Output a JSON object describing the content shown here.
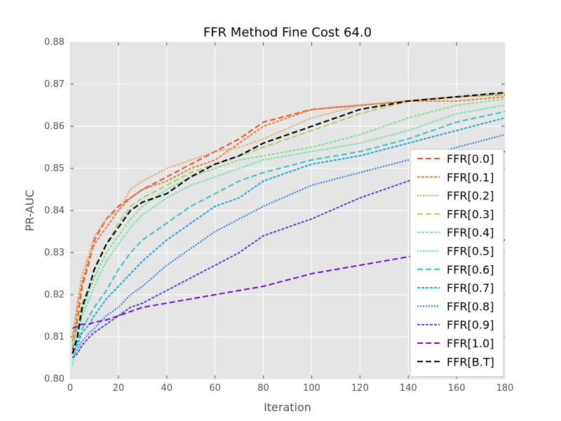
{
  "chart_data": {
    "type": "line",
    "title": "FFR Method Fine Cost 64.0",
    "xlabel": "Iteration",
    "ylabel": "PR-AUC",
    "xlim": [
      0,
      180
    ],
    "ylim": [
      0.8,
      0.88
    ],
    "xticks": [
      0,
      20,
      40,
      60,
      80,
      100,
      120,
      140,
      160,
      180
    ],
    "yticks": [
      0.8,
      0.81,
      0.82,
      0.83,
      0.84,
      0.85,
      0.86,
      0.87,
      0.88
    ],
    "xtick_labels": [
      "0",
      "20",
      "40",
      "60",
      "80",
      "100",
      "120",
      "140",
      "160",
      "180"
    ],
    "ytick_labels": [
      "0.80",
      "0.81",
      "0.82",
      "0.83",
      "0.84",
      "0.85",
      "0.86",
      "0.87",
      "0.88"
    ],
    "grid": true,
    "background": "#e5e5e5",
    "legend_position": "lower-right",
    "x": [
      1,
      3,
      5,
      8,
      10,
      15,
      20,
      25,
      30,
      40,
      50,
      60,
      70,
      80,
      100,
      120,
      140,
      160,
      180
    ],
    "series": [
      {
        "name": "FFR[0.0]",
        "color": "#e8502a",
        "dash": "8,4",
        "values": [
          0.807,
          0.814,
          0.822,
          0.828,
          0.833,
          0.838,
          0.841,
          0.843,
          0.845,
          0.848,
          0.851,
          0.854,
          0.857,
          0.861,
          0.864,
          0.865,
          0.866,
          0.867,
          0.8675
        ]
      },
      {
        "name": "FFR[0.1]",
        "color": "#f07a3c",
        "dash": "4,2",
        "values": [
          0.809,
          0.817,
          0.823,
          0.829,
          0.832,
          0.836,
          0.84,
          0.843,
          0.845,
          0.847,
          0.85,
          0.852,
          0.856,
          0.86,
          0.864,
          0.865,
          0.866,
          0.866,
          0.867
        ]
      },
      {
        "name": "FFR[0.2]",
        "color": "#e0a050",
        "dash": "2,2",
        "values": [
          0.81,
          0.818,
          0.825,
          0.83,
          0.834,
          0.838,
          0.84,
          0.845,
          0.847,
          0.85,
          0.852,
          0.854,
          0.855,
          0.857,
          0.862,
          0.865,
          0.866,
          0.867,
          0.868
        ]
      },
      {
        "name": "FFR[0.3]",
        "color": "#a8d060",
        "dash": "8,4",
        "values": [
          0.808,
          0.813,
          0.818,
          0.822,
          0.826,
          0.832,
          0.837,
          0.841,
          0.843,
          0.846,
          0.849,
          0.851,
          0.853,
          0.855,
          0.859,
          0.863,
          0.866,
          0.867,
          0.8675
        ]
      },
      {
        "name": "FFR[0.4]",
        "color": "#80e090",
        "dash": "4,2",
        "values": [
          0.808,
          0.812,
          0.816,
          0.821,
          0.824,
          0.83,
          0.834,
          0.838,
          0.841,
          0.845,
          0.848,
          0.85,
          0.852,
          0.853,
          0.855,
          0.858,
          0.862,
          0.865,
          0.8665
        ]
      },
      {
        "name": "FFR[0.5]",
        "color": "#50e0a0",
        "dash": "2,2",
        "values": [
          0.803,
          0.81,
          0.815,
          0.819,
          0.822,
          0.828,
          0.832,
          0.836,
          0.839,
          0.843,
          0.846,
          0.848,
          0.85,
          0.852,
          0.854,
          0.856,
          0.859,
          0.863,
          0.865
        ]
      },
      {
        "name": "FFR[0.6]",
        "color": "#30c8c0",
        "dash": "8,4",
        "values": [
          0.806,
          0.809,
          0.812,
          0.815,
          0.817,
          0.821,
          0.826,
          0.83,
          0.833,
          0.837,
          0.841,
          0.844,
          0.847,
          0.849,
          0.852,
          0.854,
          0.857,
          0.861,
          0.8635
        ]
      },
      {
        "name": "FFR[0.7]",
        "color": "#18a8e0",
        "dash": "4,2",
        "values": [
          0.806,
          0.808,
          0.811,
          0.813,
          0.815,
          0.819,
          0.822,
          0.825,
          0.828,
          0.833,
          0.837,
          0.841,
          0.843,
          0.847,
          0.851,
          0.853,
          0.856,
          0.859,
          0.862
        ]
      },
      {
        "name": "FFR[0.8]",
        "color": "#2878e0",
        "dash": "2,2",
        "values": [
          0.805,
          0.807,
          0.809,
          0.811,
          0.812,
          0.815,
          0.817,
          0.82,
          0.822,
          0.827,
          0.831,
          0.835,
          0.838,
          0.841,
          0.846,
          0.849,
          0.852,
          0.855,
          0.858
        ]
      },
      {
        "name": "FFR[0.9]",
        "color": "#4848d8",
        "dash": "4,2",
        "values": [
          0.805,
          0.806,
          0.808,
          0.81,
          0.811,
          0.813,
          0.815,
          0.817,
          0.818,
          0.821,
          0.824,
          0.827,
          0.83,
          0.834,
          0.838,
          0.843,
          0.847,
          0.851,
          0.854
        ]
      },
      {
        "name": "FFR[1.0]",
        "color": "#7010d0",
        "dash": "8,4",
        "values": [
          0.812,
          0.8125,
          0.813,
          0.813,
          0.8135,
          0.814,
          0.815,
          0.816,
          0.817,
          0.818,
          0.819,
          0.82,
          0.821,
          0.822,
          0.825,
          0.827,
          0.829,
          0.831,
          0.833
        ]
      },
      {
        "name": "FFR[B.T]",
        "color": "#000000",
        "dash": "8,4",
        "values": [
          0.806,
          0.81,
          0.817,
          0.822,
          0.826,
          0.832,
          0.836,
          0.84,
          0.842,
          0.844,
          0.848,
          0.851,
          0.853,
          0.856,
          0.86,
          0.864,
          0.866,
          0.867,
          0.868
        ]
      }
    ]
  }
}
